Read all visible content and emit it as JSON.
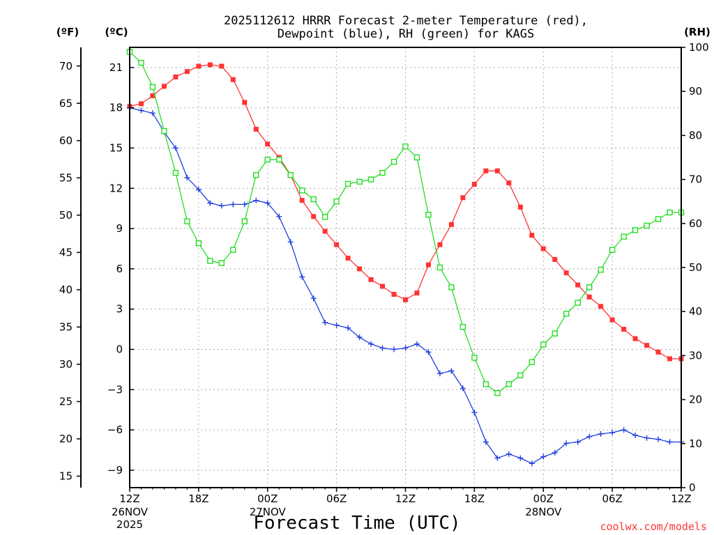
{
  "chart_data": {
    "type": "line",
    "title_line1": "2025112612 HRRR Forecast 2-meter Temperature (red),",
    "title_line2": "Dewpoint (blue), RH (green) for KAGS",
    "xlabel": "Forecast Time (UTC)",
    "credit": "coolwx.com/models",
    "units": {
      "fahrenheit": "(ºF)",
      "celsius": "(ºC)",
      "rh": "(RH)"
    },
    "x_range_hours": [
      0,
      48
    ],
    "celsius_range": [
      -10.3,
      22.5
    ],
    "rh_range": [
      0,
      100
    ],
    "fahrenheit_ticks": [
      "70",
      "65",
      "60",
      "55",
      "50",
      "45",
      "40",
      "35",
      "30",
      "25",
      "20",
      "15"
    ],
    "fahrenheit_tick_values": [
      70,
      65,
      60,
      55,
      50,
      45,
      40,
      35,
      30,
      25,
      20,
      15
    ],
    "celsius_ticks": [
      "21",
      "18",
      "15",
      "12",
      "9",
      "6",
      "3",
      "0",
      "−3",
      "−6",
      "−9"
    ],
    "celsius_tick_values": [
      21,
      18,
      15,
      12,
      9,
      6,
      3,
      0,
      -3,
      -6,
      -9
    ],
    "rh_ticks": [
      "100",
      "90",
      "80",
      "70",
      "60",
      "50",
      "40",
      "30",
      "20",
      "10",
      "0"
    ],
    "rh_tick_values": [
      100,
      90,
      80,
      70,
      60,
      50,
      40,
      30,
      20,
      10,
      0
    ],
    "x_ticks": [
      {
        "hour": 0,
        "label": "12Z",
        "sub1": "26NOV",
        "sub2": "2025"
      },
      {
        "hour": 6,
        "label": "18Z",
        "sub1": "",
        "sub2": ""
      },
      {
        "hour": 12,
        "label": "00Z",
        "sub1": "27NOV",
        "sub2": ""
      },
      {
        "hour": 18,
        "label": "06Z",
        "sub1": "",
        "sub2": ""
      },
      {
        "hour": 24,
        "label": "12Z",
        "sub1": "",
        "sub2": ""
      },
      {
        "hour": 30,
        "label": "18Z",
        "sub1": "",
        "sub2": ""
      },
      {
        "hour": 36,
        "label": "00Z",
        "sub1": "28NOV",
        "sub2": ""
      },
      {
        "hour": 42,
        "label": "06Z",
        "sub1": "",
        "sub2": ""
      },
      {
        "hour": 48,
        "label": "12Z",
        "sub1": "",
        "sub2": ""
      }
    ],
    "series": [
      {
        "name": "Temperature",
        "color": "#ff3333",
        "marker": "filled-square",
        "unit": "C",
        "values": [
          18.1,
          18.3,
          18.9,
          19.6,
          20.3,
          20.7,
          21.1,
          21.2,
          21.1,
          20.1,
          18.4,
          16.4,
          15.3,
          14.3,
          13.0,
          11.1,
          9.9,
          8.8,
          7.8,
          6.8,
          6.0,
          5.2,
          4.7,
          4.1,
          3.7,
          4.2,
          6.3,
          7.8,
          9.3,
          11.3,
          12.3,
          13.3,
          13.3,
          12.4,
          10.6,
          8.5,
          7.5,
          6.7,
          5.7,
          4.8,
          3.9,
          3.2,
          2.2,
          1.5,
          0.8,
          0.3,
          -0.2,
          -0.7,
          -0.7
        ]
      },
      {
        "name": "Dewpoint",
        "color": "#1f3fe0",
        "marker": "plus",
        "unit": "C",
        "values": [
          18.0,
          17.8,
          17.6,
          16.2,
          15.0,
          12.8,
          11.9,
          10.9,
          10.7,
          10.8,
          10.8,
          11.1,
          10.9,
          9.9,
          8.0,
          5.4,
          3.8,
          2.0,
          1.8,
          1.6,
          0.9,
          0.4,
          0.1,
          0.0,
          0.1,
          0.4,
          -0.2,
          -1.8,
          -1.6,
          -2.9,
          -4.7,
          -6.9,
          -8.1,
          -7.8,
          -8.1,
          -8.5,
          -8.0,
          -7.7,
          -7.0,
          -6.9,
          -6.5,
          -6.3,
          -6.2,
          -6.0,
          -6.4,
          -6.6,
          -6.7,
          -6.9,
          -6.9
        ]
      },
      {
        "name": "RH",
        "color": "#22dd22",
        "marker": "hollow-square",
        "unit": "%",
        "values": [
          99,
          96.5,
          91,
          81,
          71.5,
          60.5,
          55.5,
          51.5,
          51,
          54,
          60.5,
          71,
          74.5,
          74.5,
          71,
          67.5,
          65.5,
          61.5,
          65,
          69,
          69.5,
          70,
          71.5,
          74,
          77.5,
          75,
          62,
          50,
          45.5,
          36.5,
          29.5,
          23.5,
          21.5,
          23.5,
          25.5,
          28.5,
          32.5,
          35,
          39.5,
          42,
          45.5,
          49.5,
          54,
          57,
          58.5,
          59.5,
          61,
          62.5,
          62.5
        ]
      }
    ]
  }
}
